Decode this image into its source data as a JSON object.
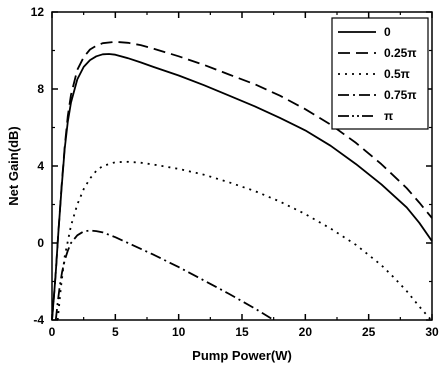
{
  "chart_data": {
    "type": "line",
    "title": "",
    "xlabel": "Pump Power(W)",
    "ylabel": "Net Gain(dB)",
    "xlim": [
      0,
      30
    ],
    "ylim": [
      -4,
      12
    ],
    "xticks": [
      0,
      5,
      10,
      15,
      20,
      25,
      30
    ],
    "yticks": [
      -4,
      0,
      4,
      8,
      12
    ],
    "grid": false,
    "legend_position": "top-right",
    "series": [
      {
        "name": "0",
        "dash": "solid",
        "x": [
          0,
          0.15,
          0.3,
          0.5,
          0.75,
          1,
          1.25,
          1.5,
          2,
          2.5,
          3,
          3.5,
          4,
          4.5,
          5,
          6,
          7,
          8,
          10,
          12,
          14,
          16,
          18,
          20,
          22,
          24,
          26,
          28,
          29,
          30
        ],
        "y": [
          -4,
          -2.8,
          -1.5,
          0.5,
          2.8,
          4.9,
          6.3,
          7.3,
          8.5,
          9.15,
          9.5,
          9.7,
          9.8,
          9.82,
          9.78,
          9.6,
          9.38,
          9.15,
          8.7,
          8.2,
          7.65,
          7.1,
          6.5,
          5.85,
          5.05,
          4.1,
          3.05,
          1.85,
          1.05,
          0.1
        ]
      },
      {
        "name": "0.25π",
        "dash": "dashed",
        "x": [
          0,
          0.15,
          0.3,
          0.5,
          0.75,
          1,
          1.25,
          1.5,
          2,
          2.5,
          3,
          3.5,
          4,
          5,
          6,
          7,
          8,
          10,
          12,
          14,
          16,
          18,
          20,
          22,
          24,
          26,
          28,
          29,
          30
        ],
        "y": [
          -4,
          -2.8,
          -1.5,
          0.5,
          2.9,
          5.0,
          6.6,
          7.7,
          9.0,
          9.65,
          10.05,
          10.25,
          10.38,
          10.45,
          10.4,
          10.28,
          10.1,
          9.7,
          9.25,
          8.75,
          8.25,
          7.65,
          6.95,
          6.15,
          5.2,
          4.1,
          2.85,
          2.1,
          1.3
        ]
      },
      {
        "name": "0.5π",
        "dash": "dotted",
        "x": [
          0.45,
          0.7,
          1,
          1.5,
          2,
          2.5,
          3,
          3.5,
          4,
          5,
          6,
          7,
          8,
          10,
          12,
          14,
          16,
          18,
          20,
          22,
          24,
          26,
          27,
          28,
          29,
          30
        ],
        "y": [
          -4,
          -2.3,
          -0.7,
          0.9,
          2.0,
          2.8,
          3.35,
          3.75,
          4.0,
          4.2,
          4.22,
          4.17,
          4.08,
          3.85,
          3.55,
          3.15,
          2.7,
          2.15,
          1.5,
          0.75,
          -0.1,
          -1.15,
          -1.8,
          -2.5,
          -3.3,
          -4.05
        ]
      },
      {
        "name": "0.75π",
        "dash": "dashdot",
        "x": [
          0.3,
          0.45,
          0.6,
          0.8,
          1,
          1.25,
          1.5,
          2,
          2.5,
          3,
          3.5,
          4,
          5,
          6,
          7,
          8,
          10,
          12,
          14,
          16,
          17.5
        ],
        "y": [
          -4,
          -3.1,
          -2.3,
          -1.5,
          -0.9,
          -0.4,
          0.0,
          0.4,
          0.6,
          0.65,
          0.62,
          0.55,
          0.3,
          0.0,
          -0.3,
          -0.6,
          -1.25,
          -1.95,
          -2.65,
          -3.4,
          -4.0
        ]
      },
      {
        "name": "π",
        "dash": "dashdotdot",
        "x": [],
        "y": []
      }
    ]
  }
}
